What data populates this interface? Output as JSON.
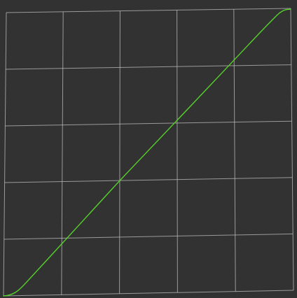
{
  "chart_data": {
    "type": "line",
    "title": "",
    "xlabel": "",
    "ylabel": "",
    "xlim": [
      0,
      1
    ],
    "ylim": [
      0,
      1
    ],
    "grid": true,
    "series": [
      {
        "points": [
          [
            0.0,
            0.0
          ],
          [
            0.02,
            0.002
          ],
          [
            0.04,
            0.01
          ],
          [
            0.06,
            0.026
          ],
          [
            0.1,
            0.07
          ],
          [
            0.2,
            0.18
          ],
          [
            0.3,
            0.29
          ],
          [
            0.4,
            0.4
          ],
          [
            0.5,
            0.505
          ],
          [
            0.6,
            0.61
          ],
          [
            0.7,
            0.715
          ],
          [
            0.8,
            0.82
          ],
          [
            0.9,
            0.925
          ],
          [
            0.94,
            0.965
          ],
          [
            0.96,
            0.985
          ],
          [
            0.98,
            0.996
          ],
          [
            1.0,
            0.997
          ]
        ]
      }
    ]
  },
  "colors": {
    "background": "#323232",
    "grid": "#bdbdbd",
    "curve": "#56d22a"
  }
}
